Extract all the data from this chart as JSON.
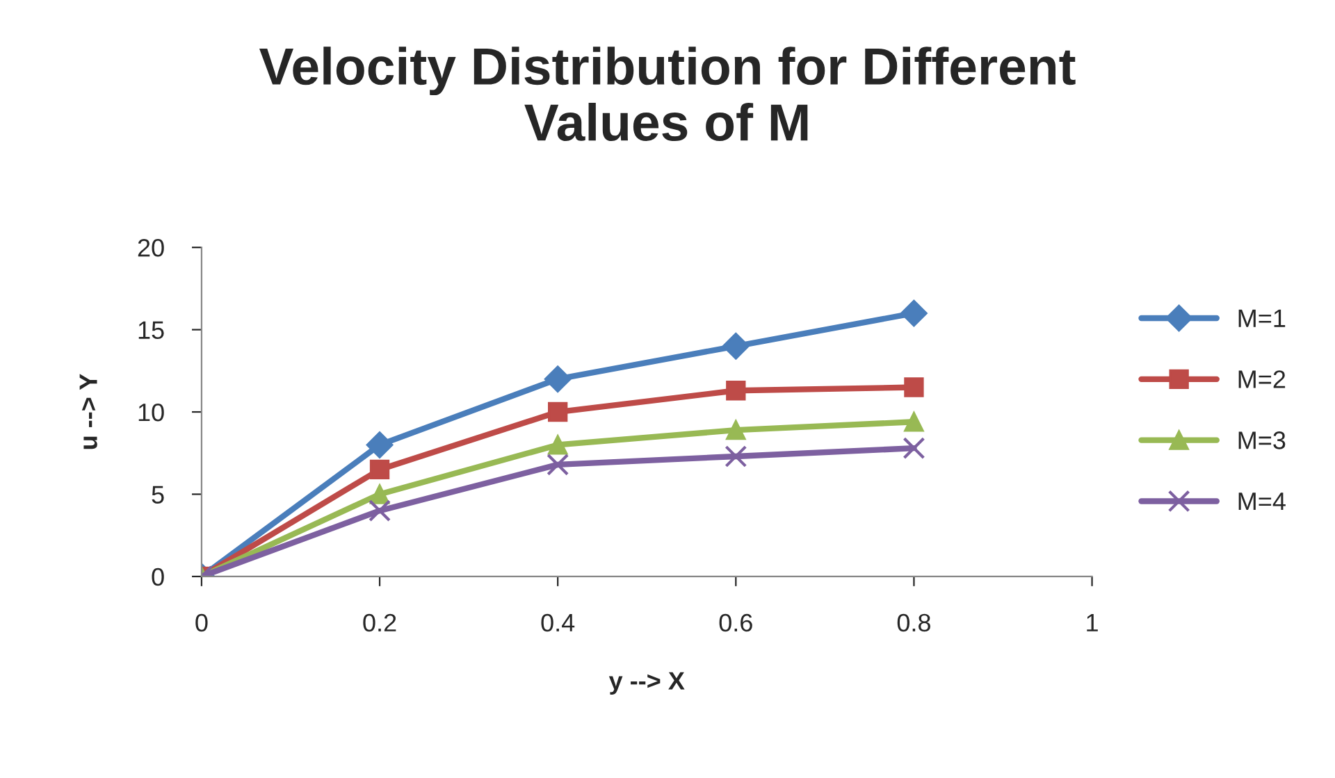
{
  "chart_data": {
    "type": "line",
    "title": "Velocity Distribution for Different\nValues of M",
    "xlabel": "y --> X",
    "ylabel": "u --> Y",
    "x": [
      0,
      0.2,
      0.4,
      0.6,
      0.8
    ],
    "series": [
      {
        "name": "M=1",
        "color": "#4a7ebb",
        "marker": "diamond",
        "values": [
          0,
          8,
          12,
          14,
          16
        ]
      },
      {
        "name": "M=2",
        "color": "#be4b48",
        "marker": "square",
        "values": [
          0,
          6.5,
          10,
          11.3,
          11.5
        ]
      },
      {
        "name": "M=3",
        "color": "#98b954",
        "marker": "triangle",
        "values": [
          0,
          5,
          8,
          8.9,
          9.4
        ]
      },
      {
        "name": "M=4",
        "color": "#7d60a0",
        "marker": "cross",
        "values": [
          0,
          4,
          6.8,
          7.3,
          7.8
        ]
      }
    ],
    "xlim": [
      0,
      1
    ],
    "xticks": [
      0,
      0.2,
      0.4,
      0.6,
      0.8,
      1
    ],
    "ylim": [
      0,
      20
    ],
    "yticks": [
      0,
      5,
      10,
      15,
      20
    ],
    "grid": false,
    "legend": "right",
    "line_style": "solid"
  }
}
